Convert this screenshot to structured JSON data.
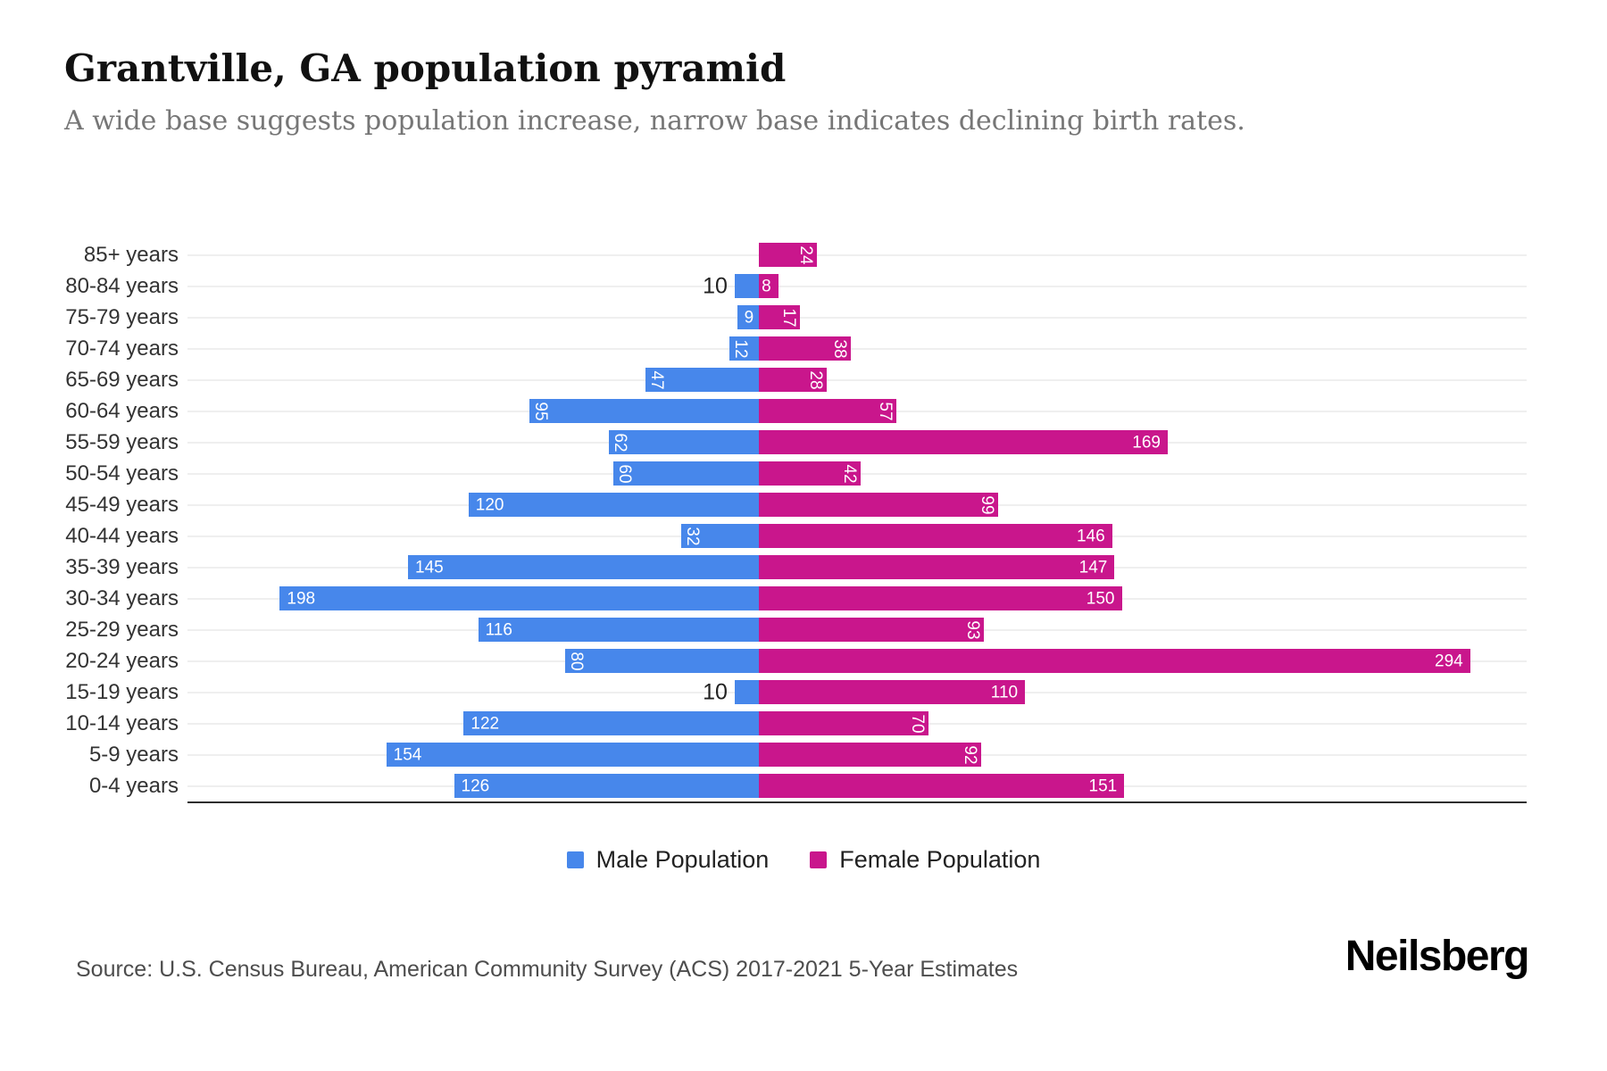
{
  "header": {
    "title": "Grantville, GA population pyramid",
    "subtitle": "A wide base suggests population increase, narrow base indicates declining birth rates."
  },
  "chart_data": {
    "type": "bar",
    "subtype": "population-pyramid",
    "orientation": "horizontal",
    "categories": [
      "85+ years",
      "80-84 years",
      "75-79 years",
      "70-74 years",
      "65-69 years",
      "60-64 years",
      "55-59 years",
      "50-54 years",
      "45-49 years",
      "40-44 years",
      "35-39 years",
      "30-34 years",
      "25-29 years",
      "20-24 years",
      "15-19 years",
      "10-14 years",
      "5-9 years",
      "0-4 years"
    ],
    "series": [
      {
        "name": "Male Population",
        "color": "#4787EB",
        "direction": "left",
        "values": [
          0,
          10,
          9,
          12,
          47,
          95,
          62,
          60,
          120,
          32,
          145,
          198,
          116,
          80,
          10,
          122,
          154,
          126
        ]
      },
      {
        "name": "Female Population",
        "color": "#C9168C",
        "direction": "right",
        "values": [
          24,
          8,
          17,
          38,
          28,
          57,
          169,
          42,
          99,
          146,
          147,
          150,
          93,
          294,
          110,
          70,
          92,
          151
        ]
      }
    ],
    "value_labels": "on-bars-white, small bars rotated 90deg, tiny male bars labeled outside in black",
    "axis_range_left_max": 236,
    "axis_range_right_max": 315,
    "gridlines": "faint horizontal line at each category center",
    "legend_position": "bottom-center"
  },
  "legend": {
    "items": [
      {
        "label": "Male Population",
        "color": "#4787EB"
      },
      {
        "label": "Female Population",
        "color": "#C9168C"
      }
    ]
  },
  "footer": {
    "source": "Source: U.S. Census Bureau, American Community Survey (ACS) 2017-2021 5-Year Estimates",
    "brand": "Neilsberg"
  }
}
